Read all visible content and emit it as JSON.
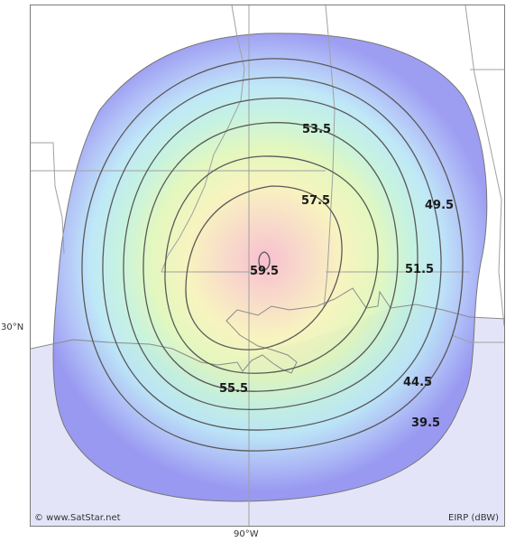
{
  "map": {
    "lat_label": "30°N",
    "lon_label": "90°W",
    "copyright": "© www.SatStar.net",
    "units": "EIRP (dBW)",
    "contours": [
      {
        "label": "59.5"
      },
      {
        "label": "57.5"
      },
      {
        "label": "55.5"
      },
      {
        "label": "53.5"
      },
      {
        "label": "51.5"
      },
      {
        "label": "49.5"
      },
      {
        "label": "44.5"
      },
      {
        "label": "39.5"
      }
    ],
    "colors": {
      "water": "#e4e4f9",
      "border": "#aaaaaa",
      "contour": "#555555",
      "center": "#f4b4c4",
      "edge": "#8c8cf0"
    }
  }
}
